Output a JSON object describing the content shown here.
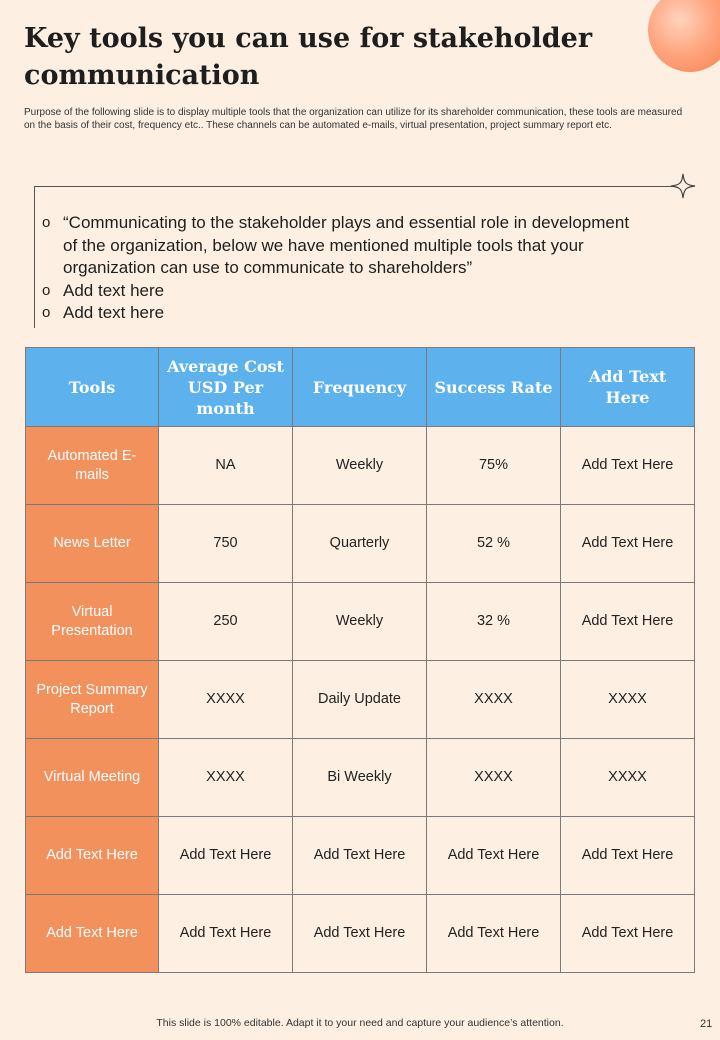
{
  "slide": {
    "title": "Key tools you can use for stakeholder communication",
    "description": "Purpose of the following slide is to display multiple tools that the organization can utilize for its shareholder communication, these tools are measured on the basis of their cost, frequency etc.. These channels can be automated e-mails, virtual presentation, project summary report etc.",
    "page_number": "21"
  },
  "quote_box": {
    "bullets": [
      "“Communicating to the stakeholder plays and essential role in development of the organization, below we have mentioned multiple tools that your organization can use to communicate to shareholders”",
      "Add text here",
      "Add text here"
    ]
  },
  "table": {
    "headers": [
      "Tools",
      "Average Cost USD Per month",
      "Frequency",
      "Success Rate",
      "Add Text Here"
    ],
    "rows": [
      [
        "Automated E-mails",
        "NA",
        "Weekly",
        "75%",
        "Add Text Here"
      ],
      [
        "News Letter",
        "750",
        "Quarterly",
        "52 %",
        "Add Text Here"
      ],
      [
        "Virtual Presentation",
        "250",
        "Weekly",
        "32 %",
        "Add Text Here"
      ],
      [
        "Project Summary Report",
        "XXXX",
        "Daily Update",
        "XXXX",
        "XXXX"
      ],
      [
        "Virtual Meeting",
        "XXXX",
        "Bi Weekly",
        "XXXX",
        "XXXX"
      ],
      [
        "Add Text Here",
        "Add Text Here",
        "Add Text Here",
        "Add Text Here",
        "Add Text Here"
      ],
      [
        "Add Text Here",
        "Add Text Here",
        "Add Text Here",
        "Add Text Here",
        "Add Text Here"
      ]
    ]
  },
  "footer": {
    "text": "This slide is 100% editable. Adapt it to your need and capture your audience’s attention."
  },
  "colors": {
    "background": "#fdf0e3",
    "header_blue": "#5db2ee",
    "row_head_orange": "#f3915d"
  },
  "icons": {
    "bullet_marker": "o",
    "sparkle": "four-point-star-icon",
    "decorative_orb": "orange-circle"
  }
}
